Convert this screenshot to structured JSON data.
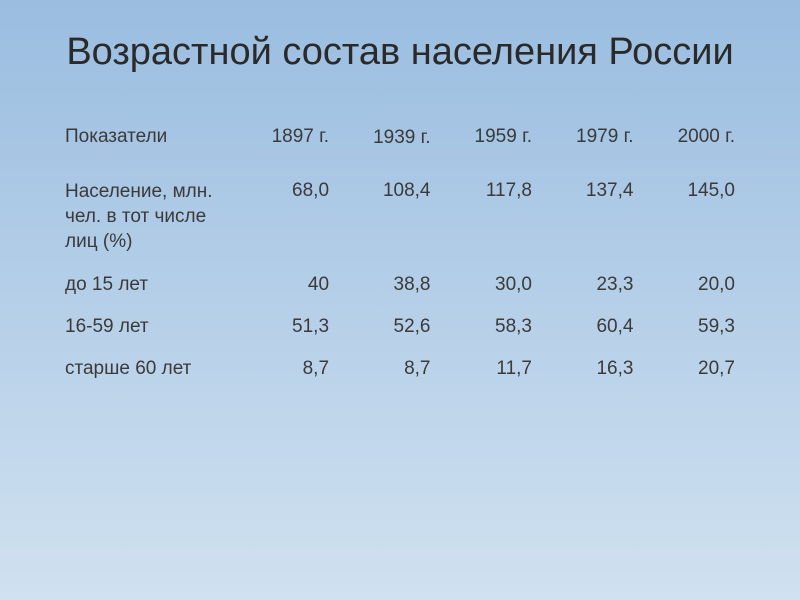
{
  "title": "Возрастной состав населения России",
  "table": {
    "header_label": "Показатели",
    "years": [
      "1897 г.",
      "1939 г.",
      "1959 г.",
      "1979 г.",
      "2000 г."
    ],
    "rows": [
      {
        "label": "Население, млн. чел. в тот числе лиц (%)",
        "values": [
          "68,0",
          "108,4",
          "117,8",
          "137,4",
          "145,0"
        ]
      },
      {
        "label": "до 15 лет",
        "values": [
          "40",
          "38,8",
          "30,0",
          "23,3",
          "20,0"
        ]
      },
      {
        "label": "16-59 лет",
        "values": [
          "51,3",
          "52,6",
          "58,3",
          "60,4",
          "59,3"
        ]
      },
      {
        "label": "старше 60 лет",
        "values": [
          "8,7",
          "8,7",
          "11,7",
          "16,3",
          "20,7"
        ]
      }
    ]
  },
  "styling": {
    "background_gradient_top": "#9abde0",
    "background_gradient_mid": "#b5cfe8",
    "background_gradient_bottom": "#d0e1f0",
    "title_fontsize": 38,
    "title_color": "#2a2a2a",
    "body_fontsize": 19,
    "body_color": "#3a3a3a",
    "font_family": "Arial"
  }
}
